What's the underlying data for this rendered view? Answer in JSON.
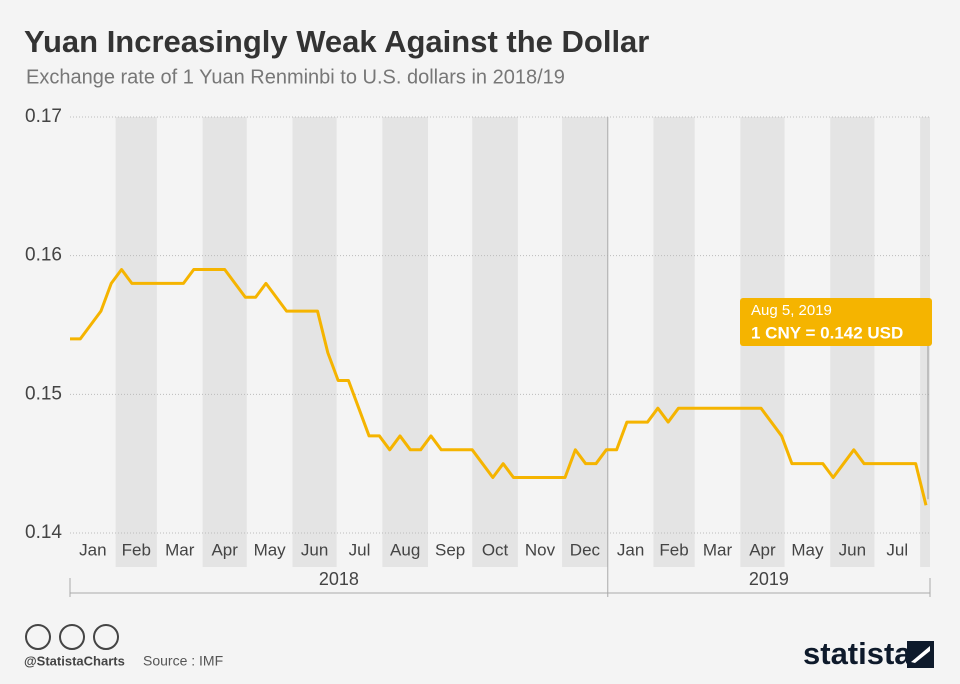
{
  "chart_data": {
    "type": "line",
    "title": "Yuan Increasingly Weak Against the Dollar",
    "subtitle": "Exchange rate of 1 Yuan Renminbi to U.S. dollars in 2018/19",
    "x": [
      "2018-01-01",
      "2018-01-08",
      "2018-01-15",
      "2018-01-22",
      "2018-01-29",
      "2018-02-05",
      "2018-02-12",
      "2018-02-19",
      "2018-02-26",
      "2018-03-05",
      "2018-03-12",
      "2018-03-19",
      "2018-03-26",
      "2018-04-02",
      "2018-04-09",
      "2018-04-16",
      "2018-04-23",
      "2018-04-30",
      "2018-05-07",
      "2018-05-14",
      "2018-05-21",
      "2018-05-28",
      "2018-06-04",
      "2018-06-11",
      "2018-06-18",
      "2018-06-25",
      "2018-07-02",
      "2018-07-09",
      "2018-07-16",
      "2018-07-23",
      "2018-07-30",
      "2018-08-06",
      "2018-08-13",
      "2018-08-20",
      "2018-08-27",
      "2018-09-03",
      "2018-09-10",
      "2018-09-17",
      "2018-09-24",
      "2018-10-01",
      "2018-10-08",
      "2018-10-15",
      "2018-10-22",
      "2018-10-29",
      "2018-11-05",
      "2018-11-12",
      "2018-11-19",
      "2018-11-26",
      "2018-12-03",
      "2018-12-10",
      "2018-12-17",
      "2018-12-24",
      "2018-12-31",
      "2019-01-07",
      "2019-01-14",
      "2019-01-21",
      "2019-01-28",
      "2019-02-04",
      "2019-02-11",
      "2019-02-18",
      "2019-02-25",
      "2019-03-04",
      "2019-03-11",
      "2019-03-18",
      "2019-03-25",
      "2019-04-01",
      "2019-04-08",
      "2019-04-15",
      "2019-04-22",
      "2019-04-29",
      "2019-05-06",
      "2019-05-13",
      "2019-05-20",
      "2019-05-27",
      "2019-06-03",
      "2019-06-10",
      "2019-06-17",
      "2019-06-24",
      "2019-07-01",
      "2019-07-08",
      "2019-07-15",
      "2019-07-22",
      "2019-07-29",
      "2019-08-05"
    ],
    "values": [
      0.154,
      0.154,
      0.155,
      0.156,
      0.158,
      0.159,
      0.158,
      0.158,
      0.158,
      0.158,
      0.158,
      0.158,
      0.159,
      0.159,
      0.159,
      0.159,
      0.158,
      0.157,
      0.157,
      0.158,
      0.157,
      0.156,
      0.156,
      0.156,
      0.156,
      0.153,
      0.151,
      0.151,
      0.149,
      0.147,
      0.147,
      0.146,
      0.147,
      0.146,
      0.146,
      0.147,
      0.146,
      0.146,
      0.146,
      0.146,
      0.145,
      0.144,
      0.145,
      0.144,
      0.144,
      0.144,
      0.144,
      0.144,
      0.144,
      0.146,
      0.145,
      0.145,
      0.146,
      0.146,
      0.148,
      0.148,
      0.148,
      0.149,
      0.148,
      0.149,
      0.149,
      0.149,
      0.149,
      0.149,
      0.149,
      0.149,
      0.149,
      0.149,
      0.148,
      0.147,
      0.145,
      0.145,
      0.145,
      0.145,
      0.144,
      0.145,
      0.146,
      0.145,
      0.145,
      0.145,
      0.145,
      0.145,
      0.145,
      0.142
    ],
    "color": "#f5b400",
    "xlim": [
      "2018-01-01",
      "2019-08-05"
    ],
    "ylim": [
      0.14,
      0.17
    ],
    "yticks": [
      0.14,
      0.15,
      0.16,
      0.17
    ],
    "grid": true,
    "months": [
      "Jan",
      "Feb",
      "Mar",
      "Apr",
      "May",
      "Jun",
      "Jul",
      "Aug",
      "Sep",
      "Oct",
      "Nov",
      "Dec",
      "Jan",
      "Feb",
      "Mar",
      "Apr",
      "May",
      "Jun",
      "Jul"
    ],
    "years": [
      "2018",
      "2019"
    ],
    "annotation": {
      "date": "Aug 5, 2019",
      "text": "1 CNY = 0.142 USD"
    }
  },
  "footer": {
    "handle": "@StatistaCharts",
    "source": "Source : IMF",
    "brand": "statista"
  }
}
